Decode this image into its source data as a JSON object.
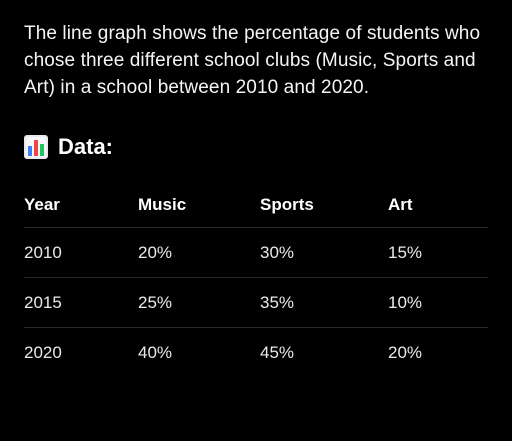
{
  "intro_text": "The line graph shows the percentage of students who chose three different school clubs (Music, Sports and Art) in a school between 2010 and 2020.",
  "section": {
    "icon": "bar-chart-icon",
    "title": "Data:"
  },
  "colors": {
    "background": "#000000",
    "text": "#ffffff",
    "divider": "#2a2a2a"
  },
  "table": {
    "headers": [
      "Year",
      "Music",
      "Sports",
      "Art"
    ],
    "rows": [
      [
        "2010",
        "20%",
        "30%",
        "15%"
      ],
      [
        "2015",
        "25%",
        "35%",
        "10%"
      ],
      [
        "2020",
        "40%",
        "45%",
        "20%"
      ]
    ]
  }
}
